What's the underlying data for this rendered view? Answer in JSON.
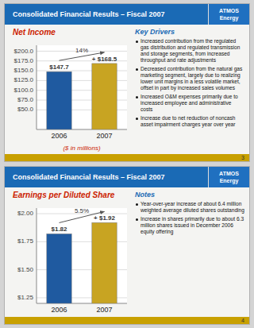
{
  "chart_data": [
    {
      "type": "bar",
      "header": "Consolidated Financial Results – Fiscal 2007",
      "logo": "ATMOS\nEnergy",
      "title": "Net Income",
      "categories": [
        "2006",
        "2007"
      ],
      "values": [
        147.7,
        168.5
      ],
      "colors": [
        "#1f5aa0",
        "#c8a422"
      ],
      "ylim": [
        0,
        215
      ],
      "yticks": [
        {
          "value": 50.0,
          "label": "$50.0"
        },
        {
          "value": 75.0,
          "label": "$75.0"
        },
        {
          "value": 100.0,
          "label": "$100.0"
        },
        {
          "value": 125.0,
          "label": "$125.0"
        },
        {
          "value": 150.0,
          "label": "$150.0"
        },
        {
          "value": 175.0,
          "label": "$175.0"
        },
        {
          "value": 200.0,
          "label": "$200.0"
        }
      ],
      "grid": true,
      "data_labels": true,
      "value_labels": [
        "$147.7",
        "+ $168.5"
      ],
      "annotation": "14%",
      "xlabel": "($ in millions)",
      "side_title": "Key Drivers",
      "side_notes": [
        "Increased contribution from the regulated gas distribution and regulated transmission and storage segments, from increased throughput and rate adjustments",
        "Decreased contribution from the natural gas marketing segment, largely due to realizing lower unit margins in a less volatile market, offset in part by increased sales volumes",
        "Increased O&M expenses primarily due to increased employee and administrative costs",
        "Increase due to net reduction of noncash asset impairment charges year over year"
      ],
      "slide_number": "3"
    },
    {
      "type": "bar",
      "header": "Consolidated Financial Results – Fiscal 2007",
      "logo": "ATMOS\nEnergy",
      "title": "Earnings per Diluted Share",
      "categories": [
        "2006",
        "2007"
      ],
      "values": [
        1.82,
        1.92
      ],
      "colors": [
        "#1f5aa0",
        "#c8a422"
      ],
      "ylim": [
        1.2,
        2.05
      ],
      "yticks": [
        {
          "value": 1.25,
          "label": "$1.25"
        },
        {
          "value": 1.5,
          "label": "$1.50"
        },
        {
          "value": 1.75,
          "label": "$1.75"
        },
        {
          "value": 2.0,
          "label": "$2.00"
        }
      ],
      "grid": true,
      "data_labels": true,
      "value_labels": [
        "$1.82",
        "+ $1.92"
      ],
      "annotation": "5.5%",
      "side_title": "Notes",
      "side_notes": [
        "Year-over-year increase of about 6.4 million weighted average diluted shares outstanding",
        "Increase in shares primarily due to about 6.3 million shares issued in December 2006 equity offering"
      ],
      "slide_number": "4"
    }
  ]
}
